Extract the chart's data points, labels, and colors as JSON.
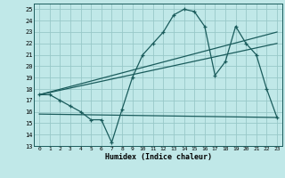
{
  "title": "",
  "xlabel": "Humidex (Indice chaleur)",
  "bg_color": "#c0e8e8",
  "grid_color": "#98c8c8",
  "line_color": "#1a5c5c",
  "xlim": [
    -0.5,
    23.5
  ],
  "ylim": [
    13,
    25.5
  ],
  "yticks": [
    13,
    14,
    15,
    16,
    17,
    18,
    19,
    20,
    21,
    22,
    23,
    24,
    25
  ],
  "xticks": [
    0,
    1,
    2,
    3,
    4,
    5,
    6,
    7,
    8,
    9,
    10,
    11,
    12,
    13,
    14,
    15,
    16,
    17,
    18,
    19,
    20,
    21,
    22,
    23
  ],
  "line1_x": [
    0,
    1,
    2,
    3,
    4,
    5,
    6,
    7,
    8,
    9,
    10,
    11,
    12,
    13,
    14,
    15,
    16,
    17,
    18,
    19,
    20,
    21,
    22,
    23
  ],
  "line1_y": [
    17.5,
    17.5,
    17.0,
    16.5,
    16.0,
    15.3,
    15.3,
    13.3,
    16.2,
    19.0,
    21.0,
    22.0,
    23.0,
    24.5,
    25.0,
    24.8,
    23.5,
    19.2,
    20.4,
    23.5,
    22.0,
    21.0,
    18.0,
    15.5
  ],
  "line2_x": [
    0,
    23
  ],
  "line2_y": [
    17.5,
    23.0
  ],
  "line3_x": [
    0,
    23
  ],
  "line3_y": [
    17.5,
    22.0
  ],
  "line4_x": [
    0,
    23
  ],
  "line4_y": [
    15.8,
    15.5
  ]
}
